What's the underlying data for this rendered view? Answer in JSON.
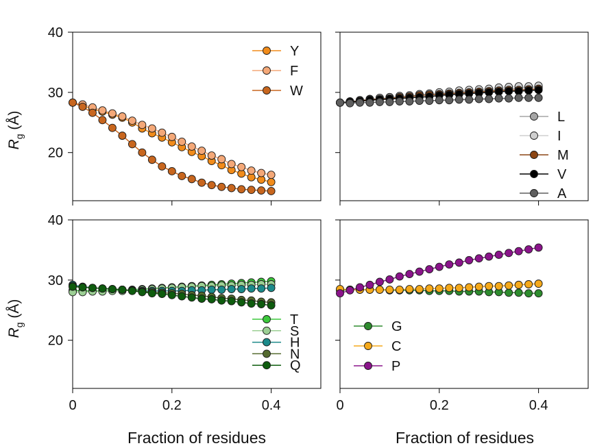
{
  "figure": {
    "ylabel_main": "R",
    "ylabel_sub": "g",
    "ylabel_unit": " (Å)",
    "xlabel": "Fraction of residues"
  },
  "chart_data": [
    {
      "type": "line",
      "panel": "top-left",
      "xlim": [
        0,
        0.5
      ],
      "ylim": [
        12,
        40
      ],
      "xticks": [
        0,
        0.2,
        0.4
      ],
      "xtick_labels": [
        "",
        "",
        ""
      ],
      "yticks": [
        20,
        30,
        40
      ],
      "ytick_labels": [
        "20",
        "30",
        "40"
      ],
      "legend_position": "top-right",
      "series": [
        {
          "name": "Y",
          "color": "#F28C1A",
          "x": [
            0,
            0.02,
            0.04,
            0.06,
            0.08,
            0.1,
            0.12,
            0.14,
            0.16,
            0.18,
            0.2,
            0.22,
            0.24,
            0.26,
            0.28,
            0.3,
            0.32,
            0.34,
            0.36,
            0.38,
            0.4
          ],
          "values": [
            28.3,
            27.8,
            27.2,
            26.8,
            26.3,
            25.8,
            25.0,
            24.0,
            23.2,
            22.5,
            21.7,
            20.9,
            20.1,
            19.4,
            18.6,
            17.9,
            17.1,
            16.5,
            15.9,
            15.5,
            15.1
          ]
        },
        {
          "name": "F",
          "color": "#F4A878",
          "x": [
            0,
            0.02,
            0.04,
            0.06,
            0.08,
            0.1,
            0.12,
            0.14,
            0.16,
            0.18,
            0.2,
            0.22,
            0.24,
            0.26,
            0.28,
            0.3,
            0.32,
            0.34,
            0.36,
            0.38,
            0.4
          ],
          "values": [
            28.3,
            28.0,
            27.5,
            27.0,
            26.5,
            26.0,
            25.3,
            24.6,
            24.0,
            23.3,
            22.6,
            21.8,
            21.0,
            20.3,
            19.5,
            18.9,
            18.1,
            17.6,
            17.0,
            16.6,
            16.3
          ]
        },
        {
          "name": "W",
          "color": "#C8661E",
          "x": [
            0,
            0.02,
            0.04,
            0.06,
            0.08,
            0.1,
            0.12,
            0.14,
            0.16,
            0.18,
            0.2,
            0.22,
            0.24,
            0.26,
            0.28,
            0.3,
            0.32,
            0.34,
            0.36,
            0.38,
            0.4
          ],
          "values": [
            28.3,
            27.6,
            26.6,
            25.4,
            24.1,
            22.8,
            21.4,
            20.0,
            18.8,
            17.7,
            16.9,
            16.1,
            15.6,
            15.0,
            14.6,
            14.3,
            14.1,
            13.9,
            13.8,
            13.7,
            13.6
          ]
        }
      ]
    },
    {
      "type": "line",
      "panel": "top-right",
      "xlim": [
        0,
        0.5
      ],
      "ylim": [
        12,
        40
      ],
      "xticks": [
        0,
        0.2,
        0.4
      ],
      "xtick_labels": [
        "",
        "",
        ""
      ],
      "yticks": [
        20,
        30,
        40
      ],
      "ytick_labels": [
        "",
        "",
        ""
      ],
      "legend_position": "bottom-right",
      "series": [
        {
          "name": "L",
          "color": "#A6A6A6",
          "x": [
            0,
            0.02,
            0.04,
            0.06,
            0.08,
            0.1,
            0.12,
            0.14,
            0.16,
            0.18,
            0.2,
            0.22,
            0.24,
            0.26,
            0.28,
            0.3,
            0.32,
            0.34,
            0.36,
            0.38,
            0.4
          ],
          "values": [
            28.3,
            28.5,
            28.7,
            28.9,
            29.0,
            29.2,
            29.3,
            29.4,
            29.6,
            29.7,
            29.8,
            30.0,
            30.1,
            30.2,
            30.3,
            30.4,
            30.5,
            30.6,
            30.7,
            30.8,
            30.9
          ]
        },
        {
          "name": "I",
          "color": "#CFCFCF",
          "x": [
            0,
            0.02,
            0.04,
            0.06,
            0.08,
            0.1,
            0.12,
            0.14,
            0.16,
            0.18,
            0.2,
            0.22,
            0.24,
            0.26,
            0.28,
            0.3,
            0.32,
            0.34,
            0.36,
            0.38,
            0.4
          ],
          "values": [
            28.3,
            28.5,
            28.7,
            28.9,
            29.1,
            29.2,
            29.4,
            29.5,
            29.7,
            29.8,
            30.0,
            30.1,
            30.3,
            30.4,
            30.5,
            30.6,
            30.8,
            30.9,
            31.0,
            31.0,
            31.1
          ]
        },
        {
          "name": "M",
          "color": "#8B4513",
          "x": [
            0,
            0.02,
            0.04,
            0.06,
            0.08,
            0.1,
            0.12,
            0.14,
            0.16,
            0.18,
            0.2,
            0.22,
            0.24,
            0.26,
            0.28,
            0.3,
            0.32,
            0.34,
            0.36,
            0.38,
            0.4
          ],
          "values": [
            28.3,
            28.4,
            28.6,
            28.8,
            28.9,
            29.0,
            29.2,
            29.3,
            29.5,
            29.6,
            29.7,
            29.8,
            29.9,
            30.0,
            30.1,
            30.2,
            30.3,
            30.4,
            30.4,
            30.5,
            30.6
          ]
        },
        {
          "name": "V",
          "color": "#000000",
          "x": [
            0,
            0.02,
            0.04,
            0.06,
            0.08,
            0.1,
            0.12,
            0.14,
            0.16,
            0.18,
            0.2,
            0.22,
            0.24,
            0.26,
            0.28,
            0.3,
            0.32,
            0.34,
            0.36,
            0.38,
            0.4
          ],
          "values": [
            28.3,
            28.4,
            28.5,
            28.7,
            28.8,
            28.9,
            29.0,
            29.1,
            29.2,
            29.3,
            29.5,
            29.6,
            29.7,
            29.8,
            29.9,
            30.0,
            30.1,
            30.2,
            30.2,
            30.3,
            30.4
          ]
        },
        {
          "name": "A",
          "color": "#5F5F5F",
          "x": [
            0,
            0.02,
            0.04,
            0.06,
            0.08,
            0.1,
            0.12,
            0.14,
            0.16,
            0.18,
            0.2,
            0.22,
            0.24,
            0.26,
            0.28,
            0.3,
            0.32,
            0.34,
            0.36,
            0.38,
            0.4
          ],
          "values": [
            28.3,
            28.2,
            28.3,
            28.3,
            28.4,
            28.4,
            28.5,
            28.5,
            28.6,
            28.6,
            28.7,
            28.7,
            28.8,
            28.8,
            28.9,
            28.9,
            29.0,
            29.0,
            29.1,
            29.1,
            29.1
          ]
        }
      ]
    },
    {
      "type": "line",
      "panel": "bottom-left",
      "xlim": [
        0,
        0.5
      ],
      "ylim": [
        12,
        40
      ],
      "xticks": [
        0,
        0.2,
        0.4
      ],
      "xtick_labels": [
        "0",
        "0.2",
        "0.4"
      ],
      "yticks": [
        20,
        30,
        40
      ],
      "ytick_labels": [
        "20",
        "30",
        "40"
      ],
      "legend_position": "bottom-right",
      "series": [
        {
          "name": "T",
          "color": "#3CC83C",
          "x": [
            0,
            0.02,
            0.04,
            0.06,
            0.08,
            0.1,
            0.12,
            0.14,
            0.16,
            0.18,
            0.2,
            0.22,
            0.24,
            0.26,
            0.28,
            0.3,
            0.32,
            0.34,
            0.36,
            0.38,
            0.4
          ],
          "values": [
            28.3,
            28.2,
            28.2,
            28.2,
            28.3,
            28.3,
            28.4,
            28.5,
            28.6,
            28.7,
            28.8,
            28.9,
            29.0,
            29.1,
            29.2,
            29.3,
            29.4,
            29.5,
            29.6,
            29.7,
            29.8
          ]
        },
        {
          "name": "S",
          "color": "#9CCF94",
          "x": [
            0,
            0.02,
            0.04,
            0.06,
            0.08,
            0.1,
            0.12,
            0.14,
            0.16,
            0.18,
            0.2,
            0.22,
            0.24,
            0.26,
            0.28,
            0.3,
            0.32,
            0.34,
            0.36,
            0.38,
            0.4
          ],
          "values": [
            28.0,
            28.0,
            28.1,
            28.1,
            28.2,
            28.2,
            28.3,
            28.4,
            28.5,
            28.6,
            28.7,
            28.8,
            28.9,
            29.0,
            29.0,
            29.1,
            29.1,
            29.2,
            29.2,
            29.3,
            29.3
          ]
        },
        {
          "name": "H",
          "color": "#1B8A8A",
          "x": [
            0,
            0.02,
            0.04,
            0.06,
            0.08,
            0.1,
            0.12,
            0.14,
            0.16,
            0.18,
            0.2,
            0.22,
            0.24,
            0.26,
            0.28,
            0.3,
            0.32,
            0.34,
            0.36,
            0.38,
            0.4
          ],
          "values": [
            29.2,
            28.9,
            28.7,
            28.6,
            28.5,
            28.4,
            28.3,
            28.2,
            28.2,
            28.2,
            28.2,
            28.2,
            28.3,
            28.3,
            28.4,
            28.4,
            28.5,
            28.5,
            28.6,
            28.6,
            28.7
          ]
        },
        {
          "name": "N",
          "color": "#556B2F",
          "x": [
            0,
            0.02,
            0.04,
            0.06,
            0.08,
            0.1,
            0.12,
            0.14,
            0.16,
            0.18,
            0.2,
            0.22,
            0.24,
            0.26,
            0.28,
            0.3,
            0.32,
            0.34,
            0.36,
            0.38,
            0.4
          ],
          "values": [
            29.0,
            28.8,
            28.7,
            28.6,
            28.5,
            28.4,
            28.3,
            28.1,
            28.0,
            27.9,
            27.8,
            27.7,
            27.5,
            27.4,
            27.2,
            27.0,
            26.9,
            26.7,
            26.6,
            26.4,
            26.3
          ]
        },
        {
          "name": "Q",
          "color": "#0E5C0E",
          "x": [
            0,
            0.02,
            0.04,
            0.06,
            0.08,
            0.1,
            0.12,
            0.14,
            0.16,
            0.18,
            0.2,
            0.22,
            0.24,
            0.26,
            0.28,
            0.3,
            0.32,
            0.34,
            0.36,
            0.38,
            0.4
          ],
          "values": [
            28.9,
            28.8,
            28.7,
            28.6,
            28.5,
            28.4,
            28.2,
            28.0,
            27.8,
            27.7,
            27.5,
            27.3,
            27.1,
            26.9,
            26.8,
            26.6,
            26.5,
            26.3,
            26.1,
            26.0,
            25.8
          ]
        }
      ]
    },
    {
      "type": "line",
      "panel": "bottom-right",
      "xlim": [
        0,
        0.5
      ],
      "ylim": [
        12,
        40
      ],
      "xticks": [
        0,
        0.2,
        0.4
      ],
      "xtick_labels": [
        "0",
        "0.2",
        "0.4"
      ],
      "yticks": [
        20,
        30,
        40
      ],
      "ytick_labels": [
        "",
        "",
        ""
      ],
      "legend_position": "bottom-left",
      "series": [
        {
          "name": "G",
          "color": "#2E8B2E",
          "x": [
            0,
            0.02,
            0.04,
            0.06,
            0.08,
            0.1,
            0.12,
            0.14,
            0.16,
            0.18,
            0.2,
            0.22,
            0.24,
            0.26,
            0.28,
            0.3,
            0.32,
            0.34,
            0.36,
            0.38,
            0.4
          ],
          "values": [
            28.3,
            28.4,
            28.4,
            28.4,
            28.4,
            28.3,
            28.3,
            28.3,
            28.3,
            28.2,
            28.2,
            28.2,
            28.1,
            28.1,
            28.1,
            28.0,
            28.0,
            27.9,
            27.9,
            27.8,
            27.8
          ]
        },
        {
          "name": "C",
          "color": "#F5A91A",
          "x": [
            0,
            0.02,
            0.04,
            0.06,
            0.08,
            0.1,
            0.12,
            0.14,
            0.16,
            0.18,
            0.2,
            0.22,
            0.24,
            0.26,
            0.28,
            0.3,
            0.32,
            0.34,
            0.36,
            0.38,
            0.4
          ],
          "values": [
            28.5,
            28.4,
            28.4,
            28.4,
            28.4,
            28.4,
            28.4,
            28.5,
            28.5,
            28.6,
            28.6,
            28.7,
            28.7,
            28.8,
            28.9,
            29.0,
            29.0,
            29.1,
            29.2,
            29.3,
            29.4
          ]
        },
        {
          "name": "P",
          "color": "#8B148B",
          "x": [
            0,
            0.02,
            0.04,
            0.06,
            0.08,
            0.1,
            0.12,
            0.14,
            0.16,
            0.18,
            0.2,
            0.22,
            0.24,
            0.26,
            0.28,
            0.3,
            0.32,
            0.34,
            0.36,
            0.38,
            0.4
          ],
          "values": [
            27.8,
            28.3,
            28.8,
            29.2,
            29.7,
            30.1,
            30.6,
            31.0,
            31.4,
            31.8,
            32.2,
            32.6,
            32.9,
            33.3,
            33.6,
            33.9,
            34.2,
            34.5,
            34.8,
            35.1,
            35.4
          ]
        }
      ]
    }
  ]
}
